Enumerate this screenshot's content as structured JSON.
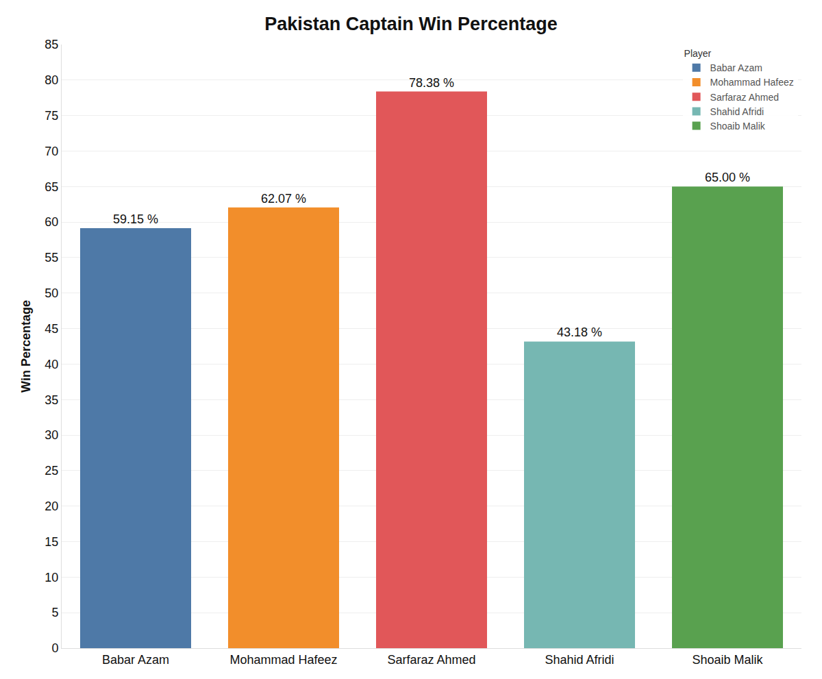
{
  "chart_data": {
    "type": "bar",
    "title": "Pakistan Captain Win Percentage",
    "y_label": "Win Percentage",
    "legend_title": "Player",
    "categories": [
      "Babar Azam",
      "Mohammad Hafeez",
      "Sarfaraz Ahmed",
      "Shahid Afridi",
      "Shoaib Malik"
    ],
    "values": [
      59.15,
      62.07,
      78.38,
      43.18,
      65.0
    ],
    "value_labels": [
      "59.15 %",
      "62.07 %",
      "78.38 %",
      "43.18 %",
      "65.00 %"
    ],
    "colors": [
      "#4e79a7",
      "#f28e2b",
      "#e15759",
      "#76b7b2",
      "#59a14f"
    ],
    "ylim": [
      0,
      85
    ],
    "yticks": [
      0,
      5,
      10,
      15,
      20,
      25,
      30,
      35,
      40,
      45,
      50,
      55,
      60,
      65,
      70,
      75,
      80,
      85
    ],
    "grid": true,
    "legend": "top-right",
    "data_labels": true
  }
}
